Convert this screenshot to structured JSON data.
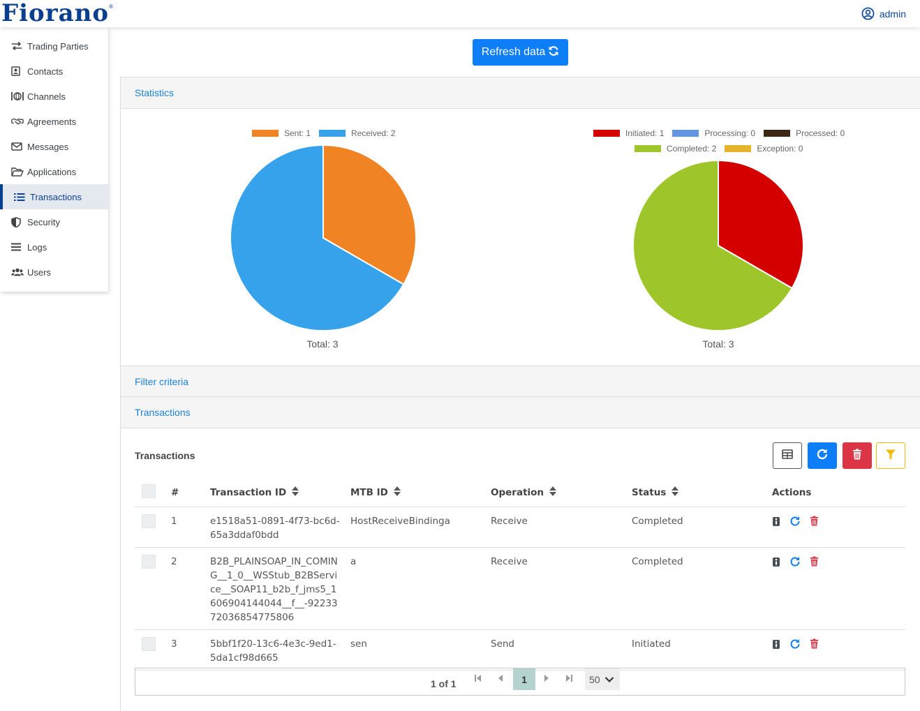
{
  "header": {
    "logo_text": "Fiorano",
    "logo_mark": "®",
    "user_label": "admin"
  },
  "sidebar": {
    "items": [
      {
        "label": "Trading Parties",
        "icon": "exchange-arrows-icon"
      },
      {
        "label": "Contacts",
        "icon": "contact-card-icon"
      },
      {
        "label": "Channels",
        "icon": "channel-icon"
      },
      {
        "label": "Agreements",
        "icon": "handshake-icon"
      },
      {
        "label": "Messages",
        "icon": "envelope-icon"
      },
      {
        "label": "Applications",
        "icon": "folder-open-icon"
      },
      {
        "label": "Transactions",
        "icon": "list-icon",
        "active": true
      },
      {
        "label": "Security",
        "icon": "shield-icon"
      },
      {
        "label": "Logs",
        "icon": "bars-icon"
      },
      {
        "label": "Users",
        "icon": "users-icon"
      }
    ]
  },
  "refresh_button": "Refresh data",
  "sections": {
    "statistics": "Statistics",
    "filter": "Filter criteria",
    "transactions": "Transactions"
  },
  "chart_data": [
    {
      "type": "pie",
      "labels": [
        "Sent",
        "Received"
      ],
      "values": [
        1,
        2
      ],
      "legend": [
        "Sent: 1",
        "Received: 2"
      ],
      "colors": [
        "#f08424",
        "#36a2eb"
      ],
      "total_label": "Total: 3",
      "legend_position": "top"
    },
    {
      "type": "pie",
      "labels": [
        "Initiated",
        "Processing",
        "Processed",
        "Completed",
        "Exception"
      ],
      "values": [
        1,
        0,
        0,
        2,
        0
      ],
      "legend": [
        "Initiated: 1",
        "Processing: 0",
        "Processed: 0",
        "Completed: 2",
        "Exception: 0"
      ],
      "colors": [
        "#d40000",
        "#6394e0",
        "#3d2816",
        "#9ec62b",
        "#e5b42a"
      ],
      "total_label": "Total: 3",
      "legend_position": "top"
    }
  ],
  "table": {
    "title": "Transactions",
    "columns": [
      "#",
      "Transaction ID",
      "MTB ID",
      "Operation",
      "Status",
      "Actions"
    ],
    "rows": [
      {
        "num": "1",
        "id": "e1518a51-0891-4f73-bc6d-65a3ddaf0bdd",
        "mtb": "HostReceiveBindinga",
        "op": "Receive",
        "status": "Completed"
      },
      {
        "num": "2",
        "id": "B2B_PLAINSOAP_IN_COMING__1_0__WSStub_B2BService__SOAP11_b2b_f_jms5_1606904144044__f__-9223372036854775806",
        "mtb": "a",
        "op": "Receive",
        "status": "Completed"
      },
      {
        "num": "3",
        "id": "5bbf1f20-13c6-4e3c-9ed1-5da1cf98d665",
        "mtb": "sen",
        "op": "Send",
        "status": "Initiated"
      }
    ]
  },
  "toolbar_colors": {
    "refresh": "#0d7ef5",
    "delete": "#dc3545",
    "filter": "#f5b800"
  },
  "pager": {
    "info": "1 of 1",
    "current": "1",
    "page_size": "50"
  }
}
